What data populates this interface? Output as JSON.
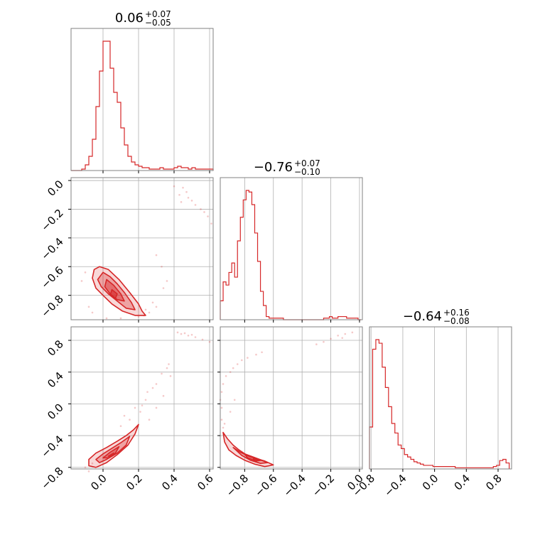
{
  "chart_data": {
    "type": "corner",
    "color": "#d62728",
    "grid": true,
    "parameters": [
      {
        "title": {
          "median": "0.06",
          "upper": "+0.07",
          "lower": "−0.05"
        },
        "range": [
          -0.18,
          0.62
        ]
      },
      {
        "title": {
          "median": "−0.76",
          "upper": "+0.07",
          "lower": "−0.10"
        },
        "range": [
          -0.97,
          0.02
        ]
      },
      {
        "title": {
          "median": "−0.64",
          "upper": "+0.16",
          "lower": "−0.08"
        },
        "range": [
          -0.82,
          0.97
        ]
      }
    ],
    "ticks": {
      "p0_x": {
        "values": [
          0.0,
          0.2,
          0.4,
          0.6
        ],
        "labels": [
          "0.0",
          "0.2",
          "0.4",
          "0.6"
        ]
      },
      "p1_x": {
        "values": [
          -0.8,
          -0.6,
          -0.4,
          -0.2,
          0.0
        ],
        "labels": [
          "−0.8",
          "−0.6",
          "−0.4",
          "−0.2",
          "0.0"
        ]
      },
      "p2_x": {
        "values": [
          -0.8,
          -0.4,
          0.0,
          0.4,
          0.8
        ],
        "labels": [
          "−0.8",
          "−0.4",
          "0.0",
          "0.4",
          "0.8"
        ]
      },
      "p1_y": {
        "values": [
          0.0,
          -0.2,
          -0.4,
          -0.6,
          -0.8
        ],
        "labels": [
          "0.0",
          "−0.2",
          "−0.4",
          "−0.6",
          "−0.8"
        ]
      },
      "p2_y": {
        "values": [
          0.8,
          0.4,
          0.0,
          -0.4,
          -0.8
        ],
        "labels": [
          "0.8",
          "0.4",
          "0.0",
          "−0.4",
          "−0.8"
        ]
      }
    },
    "histograms": [
      {
        "param": 0,
        "bin_edges": [
          -0.18,
          -0.16,
          -0.14,
          -0.12,
          -0.1,
          -0.08,
          -0.06,
          -0.04,
          -0.02,
          0.0,
          0.02,
          0.04,
          0.06,
          0.08,
          0.1,
          0.12,
          0.14,
          0.16,
          0.18,
          0.2,
          0.22,
          0.24,
          0.26,
          0.28,
          0.3,
          0.32,
          0.34,
          0.36,
          0.38,
          0.4,
          0.42,
          0.44,
          0.46,
          0.48,
          0.5,
          0.52,
          0.54,
          0.56,
          0.58,
          0.6,
          0.62
        ],
        "counts": [
          0,
          0,
          0,
          1,
          4,
          10,
          22,
          45,
          70,
          91,
          91,
          72,
          55,
          48,
          30,
          18,
          10,
          6,
          4,
          3,
          2,
          2,
          1,
          1,
          1,
          2,
          1,
          1,
          1,
          2,
          3,
          2,
          2,
          1,
          2,
          1,
          1,
          1,
          1,
          1
        ]
      },
      {
        "param": 1,
        "bin_edges": [
          -0.97,
          -0.95,
          -0.93,
          -0.91,
          -0.89,
          -0.87,
          -0.85,
          -0.83,
          -0.81,
          -0.79,
          -0.77,
          -0.75,
          -0.73,
          -0.71,
          -0.69,
          -0.67,
          -0.65,
          -0.63,
          -0.61,
          -0.59,
          -0.57,
          -0.55,
          -0.53,
          -0.51,
          -0.49,
          -0.47,
          -0.45,
          -0.43,
          -0.41,
          -0.39,
          -0.37,
          -0.35,
          -0.33,
          -0.31,
          -0.29,
          -0.27,
          -0.25,
          -0.23,
          -0.21,
          -0.19,
          -0.17,
          -0.15,
          -0.13,
          -0.11,
          -0.09,
          -0.07,
          -0.05,
          -0.03,
          -0.01,
          0.01
        ],
        "counts": [
          12,
          24,
          22,
          30,
          36,
          27,
          50,
          65,
          76,
          82,
          81,
          73,
          55,
          37,
          18,
          9,
          2,
          1,
          1,
          1,
          1,
          1,
          0,
          0,
          0,
          0,
          0,
          0,
          0,
          0,
          0,
          0,
          0,
          0,
          0,
          0,
          1,
          1,
          2,
          1,
          1,
          2,
          2,
          2,
          1,
          1,
          1,
          1,
          0
        ]
      },
      {
        "param": 2,
        "bin_edges": [
          -0.82,
          -0.78,
          -0.74,
          -0.7,
          -0.66,
          -0.62,
          -0.58,
          -0.54,
          -0.5,
          -0.46,
          -0.42,
          -0.38,
          -0.34,
          -0.3,
          -0.26,
          -0.22,
          -0.18,
          -0.14,
          -0.1,
          -0.06,
          -0.02,
          0.02,
          0.06,
          0.1,
          0.14,
          0.18,
          0.22,
          0.26,
          0.3,
          0.34,
          0.38,
          0.42,
          0.46,
          0.5,
          0.54,
          0.58,
          0.62,
          0.66,
          0.7,
          0.74,
          0.78,
          0.82,
          0.86,
          0.9,
          0.94
        ],
        "counts": [
          35,
          100,
          108,
          105,
          85,
          68,
          52,
          38,
          30,
          20,
          17,
          12,
          10,
          8,
          6,
          5,
          4,
          3,
          3,
          3,
          2,
          2,
          2,
          2,
          2,
          2,
          2,
          1,
          1,
          1,
          1,
          1,
          1,
          1,
          1,
          1,
          1,
          1,
          1,
          2,
          3,
          7,
          8,
          5
        ]
      }
    ],
    "scatter_panels": [
      {
        "x_param": 0,
        "y_param": 1,
        "contours": [
          [
            [
              -0.02,
              -0.6
            ],
            [
              0.03,
              -0.62
            ],
            [
              0.09,
              -0.69
            ],
            [
              0.15,
              -0.78
            ],
            [
              0.2,
              -0.86
            ],
            [
              0.22,
              -0.91
            ],
            [
              0.24,
              -0.94
            ],
            [
              0.18,
              -0.94
            ],
            [
              0.11,
              -0.91
            ],
            [
              0.05,
              -0.86
            ],
            [
              0.0,
              -0.8
            ],
            [
              -0.04,
              -0.75
            ],
            [
              -0.06,
              -0.68
            ],
            [
              -0.05,
              -0.62
            ]
          ],
          [
            [
              0.0,
              -0.64
            ],
            [
              0.04,
              -0.67
            ],
            [
              0.08,
              -0.72
            ],
            [
              0.12,
              -0.78
            ],
            [
              0.16,
              -0.85
            ],
            [
              0.18,
              -0.9
            ],
            [
              0.13,
              -0.89
            ],
            [
              0.08,
              -0.84
            ],
            [
              0.03,
              -0.79
            ],
            [
              -0.01,
              -0.74
            ],
            [
              -0.03,
              -0.69
            ]
          ],
          [
            [
              0.02,
              -0.69
            ],
            [
              0.06,
              -0.73
            ],
            [
              0.1,
              -0.79
            ],
            [
              0.12,
              -0.84
            ],
            [
              0.08,
              -0.83
            ],
            [
              0.04,
              -0.79
            ],
            [
              0.01,
              -0.74
            ]
          ],
          [
            [
              0.05,
              -0.76
            ],
            [
              0.08,
              -0.79
            ],
            [
              0.07,
              -0.82
            ],
            [
              0.04,
              -0.8
            ]
          ]
        ],
        "scatter": [
          [
            0.43,
            -0.1
          ],
          [
            0.45,
            -0.05
          ],
          [
            0.48,
            -0.12
          ],
          [
            0.5,
            -0.14
          ],
          [
            0.52,
            -0.17
          ],
          [
            0.55,
            -0.2
          ],
          [
            0.57,
            -0.22
          ],
          [
            0.59,
            -0.25
          ],
          [
            0.61,
            -0.3
          ],
          [
            0.47,
            -0.08
          ],
          [
            0.4,
            -0.04
          ],
          [
            0.44,
            -0.15
          ],
          [
            0.3,
            -0.52
          ],
          [
            0.33,
            -0.6
          ],
          [
            0.36,
            -0.7
          ],
          [
            0.28,
            -0.85
          ],
          [
            0.3,
            -0.88
          ],
          [
            0.26,
            -0.92
          ],
          [
            0.24,
            -0.9
          ],
          [
            0.23,
            -0.94
          ],
          [
            0.2,
            -0.95
          ],
          [
            0.34,
            -0.75
          ],
          [
            -0.1,
            -0.64
          ],
          [
            -0.12,
            -0.7
          ],
          [
            -0.08,
            -0.88
          ],
          [
            -0.06,
            -0.92
          ],
          [
            0.02,
            -0.96
          ],
          [
            0.1,
            -0.96
          ]
        ]
      },
      {
        "x_param": 0,
        "y_param": 2,
        "contours": [
          [
            [
              -0.08,
              -0.7
            ],
            [
              -0.04,
              -0.62
            ],
            [
              0.02,
              -0.55
            ],
            [
              0.08,
              -0.47
            ],
            [
              0.13,
              -0.4
            ],
            [
              0.17,
              -0.33
            ],
            [
              0.2,
              -0.26
            ],
            [
              0.18,
              -0.38
            ],
            [
              0.14,
              -0.52
            ],
            [
              0.08,
              -0.64
            ],
            [
              0.02,
              -0.74
            ],
            [
              -0.04,
              -0.8
            ],
            [
              -0.08,
              -0.78
            ]
          ],
          [
            [
              -0.04,
              -0.7
            ],
            [
              0.0,
              -0.63
            ],
            [
              0.05,
              -0.56
            ],
            [
              0.1,
              -0.49
            ],
            [
              0.15,
              -0.41
            ],
            [
              0.13,
              -0.52
            ],
            [
              0.08,
              -0.62
            ],
            [
              0.02,
              -0.7
            ],
            [
              -0.02,
              -0.74
            ]
          ],
          [
            [
              0.0,
              -0.68
            ],
            [
              0.04,
              -0.61
            ],
            [
              0.09,
              -0.54
            ],
            [
              0.07,
              -0.62
            ],
            [
              0.03,
              -0.68
            ]
          ],
          [
            [
              0.03,
              -0.66
            ],
            [
              0.06,
              -0.62
            ],
            [
              0.05,
              -0.66
            ]
          ]
        ],
        "scatter": [
          [
            0.44,
            0.88
          ],
          [
            0.48,
            0.86
          ],
          [
            0.52,
            0.84
          ],
          [
            0.56,
            0.81
          ],
          [
            0.6,
            0.78
          ],
          [
            0.42,
            0.9
          ],
          [
            0.46,
            0.89
          ],
          [
            0.5,
            0.87
          ],
          [
            0.37,
            0.5
          ],
          [
            0.38,
            0.35
          ],
          [
            0.36,
            0.45
          ],
          [
            0.33,
            0.38
          ],
          [
            0.3,
            0.25
          ],
          [
            0.28,
            0.2
          ],
          [
            0.25,
            0.15
          ],
          [
            0.24,
            0.05
          ],
          [
            0.22,
            -0.02
          ],
          [
            0.21,
            -0.1
          ],
          [
            0.18,
            -0.05
          ],
          [
            0.15,
            -0.2
          ],
          [
            0.12,
            -0.15
          ],
          [
            0.1,
            -0.28
          ],
          [
            -0.1,
            -0.8
          ],
          [
            -0.08,
            -0.85
          ],
          [
            -0.06,
            -0.75
          ],
          [
            0.26,
            -0.2
          ],
          [
            0.3,
            -0.05
          ],
          [
            0.34,
            0.1
          ]
        ]
      },
      {
        "x_param": 1,
        "y_param": 2,
        "contours": [
          [
            [
              -0.95,
              -0.36
            ],
            [
              -0.92,
              -0.44
            ],
            [
              -0.88,
              -0.52
            ],
            [
              -0.84,
              -0.58
            ],
            [
              -0.79,
              -0.64
            ],
            [
              -0.72,
              -0.69
            ],
            [
              -0.66,
              -0.72
            ],
            [
              -0.6,
              -0.77
            ],
            [
              -0.66,
              -0.79
            ],
            [
              -0.73,
              -0.76
            ],
            [
              -0.8,
              -0.71
            ],
            [
              -0.86,
              -0.65
            ],
            [
              -0.91,
              -0.58
            ],
            [
              -0.94,
              -0.48
            ]
          ],
          [
            [
              -0.88,
              -0.55
            ],
            [
              -0.83,
              -0.61
            ],
            [
              -0.77,
              -0.66
            ],
            [
              -0.7,
              -0.7
            ],
            [
              -0.64,
              -0.74
            ],
            [
              -0.69,
              -0.75
            ],
            [
              -0.76,
              -0.71
            ],
            [
              -0.82,
              -0.65
            ]
          ],
          [
            [
              -0.8,
              -0.63
            ],
            [
              -0.74,
              -0.67
            ],
            [
              -0.68,
              -0.71
            ],
            [
              -0.72,
              -0.72
            ],
            [
              -0.78,
              -0.68
            ]
          ],
          [
            [
              -0.74,
              -0.69
            ],
            [
              -0.7,
              -0.71
            ],
            [
              -0.73,
              -0.72
            ]
          ]
        ],
        "scatter": [
          [
            -0.96,
            -0.05
          ],
          [
            -0.97,
            0.05
          ],
          [
            -0.96,
            0.15
          ],
          [
            -0.95,
            0.25
          ],
          [
            -0.93,
            0.35
          ],
          [
            -0.9,
            0.4
          ],
          [
            -0.88,
            0.45
          ],
          [
            -0.85,
            0.5
          ],
          [
            -0.82,
            0.55
          ],
          [
            -0.78,
            0.58
          ],
          [
            -0.72,
            0.62
          ],
          [
            -0.68,
            0.65
          ],
          [
            -0.2,
            0.82
          ],
          [
            -0.15,
            0.86
          ],
          [
            -0.1,
            0.88
          ],
          [
            -0.05,
            0.9
          ],
          [
            -0.25,
            0.78
          ],
          [
            -0.3,
            0.75
          ],
          [
            -0.12,
            0.83
          ],
          [
            -0.95,
            -0.3
          ],
          [
            -0.96,
            -0.2
          ],
          [
            -0.94,
            -0.25
          ],
          [
            -0.9,
            -0.1
          ],
          [
            -0.87,
            0.05
          ]
        ]
      }
    ]
  }
}
